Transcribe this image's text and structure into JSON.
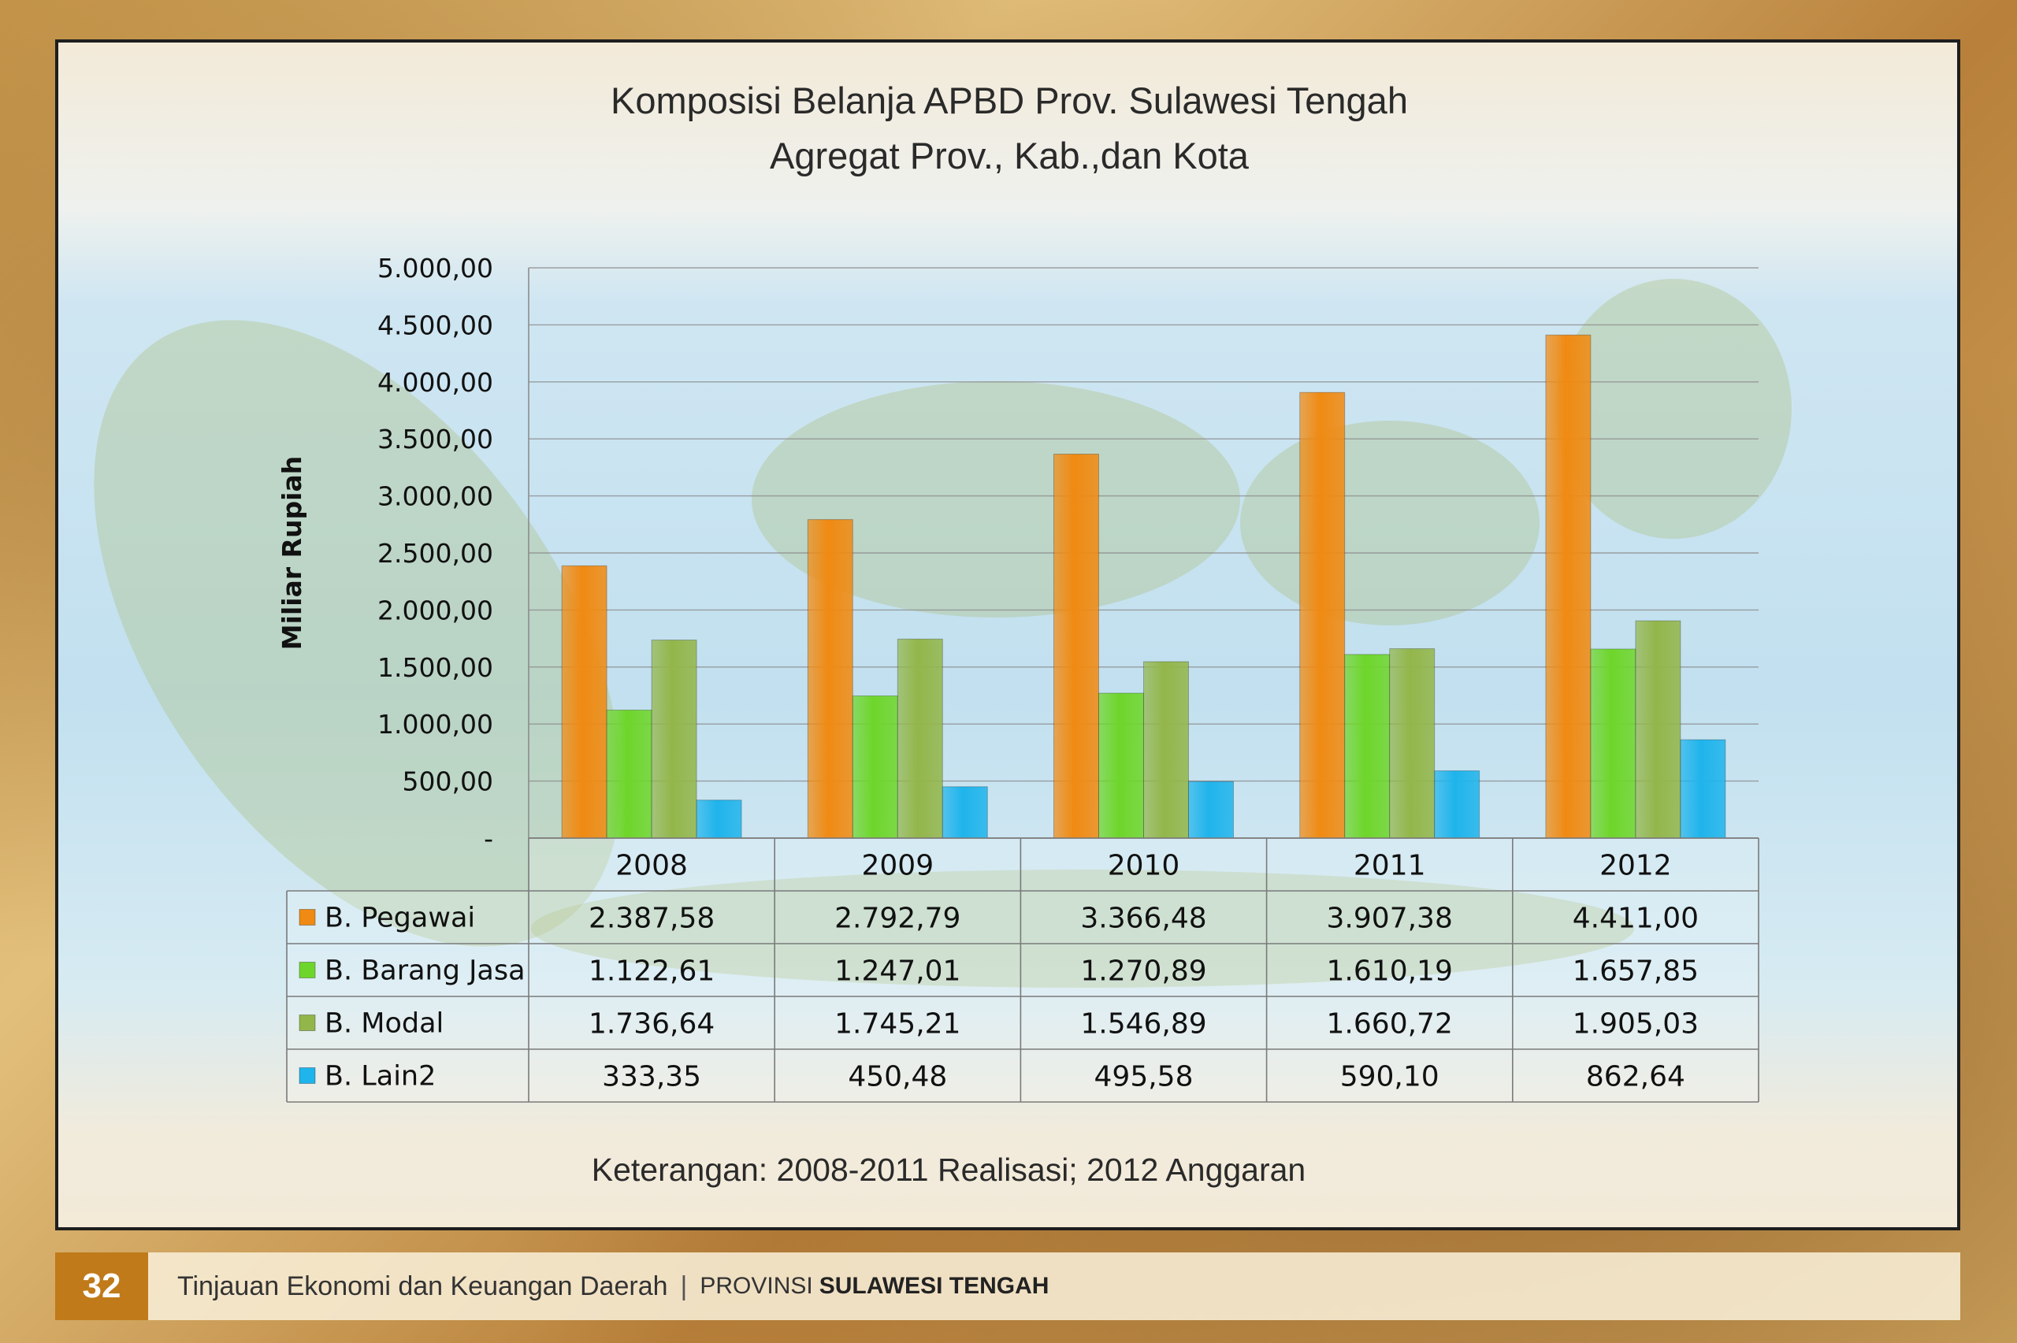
{
  "chart_data": {
    "type": "bar",
    "title": "Komposisi Belanja  APBD Prov. Sulawesi Tengah",
    "subtitle": "Agregat Prov., Kab.,dan Kota",
    "ylabel": "Miliar Rupiah",
    "ylim": [
      0,
      5000
    ],
    "yticks": [
      "-",
      "500,00",
      "1.000,00",
      "1.500,00",
      "2.000,00",
      "2.500,00",
      "3.000,00",
      "3.500,00",
      "4.000,00",
      "4.500,00",
      "5.000,00"
    ],
    "grid": true,
    "legend": "data-table",
    "categories": [
      "2008",
      "2009",
      "2010",
      "2011",
      "2012"
    ],
    "series": [
      {
        "name": "B. Pegawai",
        "color": "#f08a12",
        "values": [
          2387.58,
          2792.79,
          3366.48,
          3907.38,
          4411.0
        ],
        "labels": [
          "2.387,58",
          "2.792,79",
          "3.366,48",
          "3.907,38",
          "4.411,00"
        ]
      },
      {
        "name": "B. Barang Jasa",
        "color": "#6ed62a",
        "values": [
          1122.61,
          1247.01,
          1270.89,
          1610.19,
          1657.85
        ],
        "labels": [
          "1.122,61",
          "1.247,01",
          "1.270,89",
          "1.610,19",
          "1.657,85"
        ]
      },
      {
        "name": "B. Modal",
        "color": "#93b64a",
        "values": [
          1736.64,
          1745.21,
          1546.89,
          1660.72,
          1905.03
        ],
        "labels": [
          "1.736,64",
          "1.745,21",
          "1.546,89",
          "1.660,72",
          "1.905,03"
        ]
      },
      {
        "name": "B. Lain2",
        "color": "#1fb4ec",
        "values": [
          333.35,
          450.48,
          495.58,
          590.1,
          862.64
        ],
        "labels": [
          "333,35",
          "450,48",
          "495,58",
          "590,10",
          "862,64"
        ]
      }
    ],
    "note": "Keterangan: 2008-2011 Realisasi; 2012 Anggaran"
  },
  "footer": {
    "page_number": "32",
    "publication": "Tinjauan Ekonomi dan Keuangan Daerah",
    "separator": "|",
    "province_prefix": "PROVINSI",
    "province_name": "SULAWESI TENGAH"
  }
}
